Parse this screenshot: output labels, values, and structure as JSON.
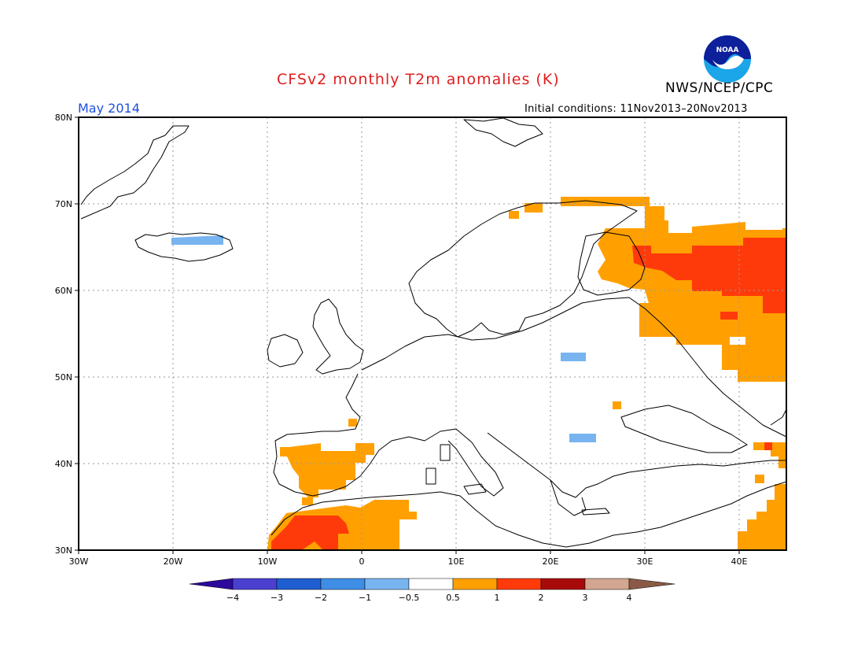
{
  "header": {
    "title": "CFSv2 monthly T2m anomalies (K)",
    "agency": "NWS/NCEP/CPC",
    "month": "May 2014",
    "initial_conditions": "Initial conditions: 11Nov2013–20Nov2013",
    "logo_text": "NOAA"
  },
  "axes": {
    "lat_ticks": [
      "80N",
      "70N",
      "60N",
      "50N",
      "40N",
      "30N"
    ],
    "lon_ticks": [
      "30W",
      "20W",
      "10W",
      "0",
      "10E",
      "20E",
      "30E",
      "40E"
    ]
  },
  "colorbar": {
    "labels": [
      "−4",
      "−3",
      "−2",
      "−1",
      "−0.5",
      "0.5",
      "1",
      "2",
      "3",
      "4"
    ],
    "colors": [
      "#2b0a9c",
      "#4b3fd0",
      "#1f5ed0",
      "#3f8ee6",
      "#78b4f0",
      "#ffffff",
      "#ffa000",
      "#ff3a0a",
      "#a80a0a",
      "#d2a690",
      "#8a5a46"
    ]
  },
  "regions": [
    {
      "name": "Iceland",
      "category": "-1 to -0.5",
      "color": "#78b4f0"
    },
    {
      "name": "Poland",
      "category": "-1 to -0.5",
      "color": "#78b4f0"
    },
    {
      "name": "Bulgaria",
      "category": "-1 to -0.5",
      "color": "#78b4f0"
    },
    {
      "name": "Iberia",
      "category": "0.5 to 1",
      "color": "#ffa000"
    },
    {
      "name": "Morocco",
      "category": "1 to 2",
      "color": "#ff3a0a"
    },
    {
      "name": "Western Russia",
      "category": "1 to 2",
      "color": "#ff3a0a"
    }
  ]
}
